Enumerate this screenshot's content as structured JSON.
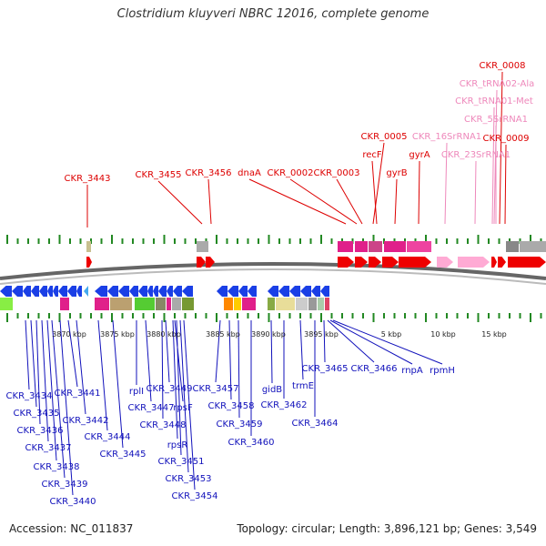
{
  "title": "Clostridium kluyveri NBRC 12016, complete genome",
  "footer": {
    "accession": "Accession: NC_011837",
    "summary": "Topology: circular; Length: 3,896,121 bp; Genes: 3,549"
  },
  "colors": {
    "top_label": "#dd0000",
    "rna_label": "#ee88bb",
    "bottom_label": "#1111bb",
    "forward_gene": "#ee0000",
    "rna_gene": "#ffaad4",
    "reverse_gene": "#1a3fe6",
    "tick": "#228822"
  },
  "axis_ticks": [
    "3870 kbp",
    "3875 kbp",
    "3880 kbp",
    "3885 kbp",
    "3890 kbp",
    "3895 kbp",
    "5 kbp",
    "10 kbp",
    "15 kbp"
  ],
  "top_labels": [
    {
      "id": "CKR_3443",
      "kind": "gene"
    },
    {
      "id": "CKR_3455",
      "kind": "gene"
    },
    {
      "id": "CKR_3456",
      "kind": "gene"
    },
    {
      "id": "dnaA",
      "kind": "gene"
    },
    {
      "id": "CKR_0002",
      "kind": "gene"
    },
    {
      "id": "CKR_0003",
      "kind": "gene"
    },
    {
      "id": "CKR_0005",
      "kind": "gene"
    },
    {
      "id": "recF",
      "kind": "gene"
    },
    {
      "id": "gyrB",
      "kind": "gene"
    },
    {
      "id": "gyrA",
      "kind": "gene"
    },
    {
      "id": "CKR_16SrRNA1",
      "kind": "rna"
    },
    {
      "id": "CKR_23SrRNA1",
      "kind": "rna"
    },
    {
      "id": "CKR_0008",
      "kind": "gene"
    },
    {
      "id": "CKR_tRNA02-Ala",
      "kind": "rna"
    },
    {
      "id": "CKR_tRNA01-Met",
      "kind": "rna"
    },
    {
      "id": "CKR_5SrRNA1",
      "kind": "rna"
    },
    {
      "id": "CKR_0009",
      "kind": "gene"
    }
  ],
  "bottom_labels": [
    "CKR_3434",
    "CKR_3435",
    "CKR_3436",
    "CKR_3437",
    "CKR_3438",
    "CKR_3439",
    "CKR_3440",
    "CKR_3441",
    "CKR_3442",
    "CKR_3444",
    "CKR_3445",
    "rplI",
    "CKR_3447",
    "CKR_3448",
    "CKR_3449",
    "rpsF",
    "rpsR",
    "CKR_3451",
    "CKR_3453",
    "CKR_3454",
    "CKR_3457",
    "CKR_3458",
    "CKR_3459",
    "CKR_3460",
    "gidB",
    "CKR_3462",
    "trmE",
    "CKR_3464",
    "CKR_3465",
    "CKR_3466",
    "rnpA",
    "rpmH"
  ]
}
